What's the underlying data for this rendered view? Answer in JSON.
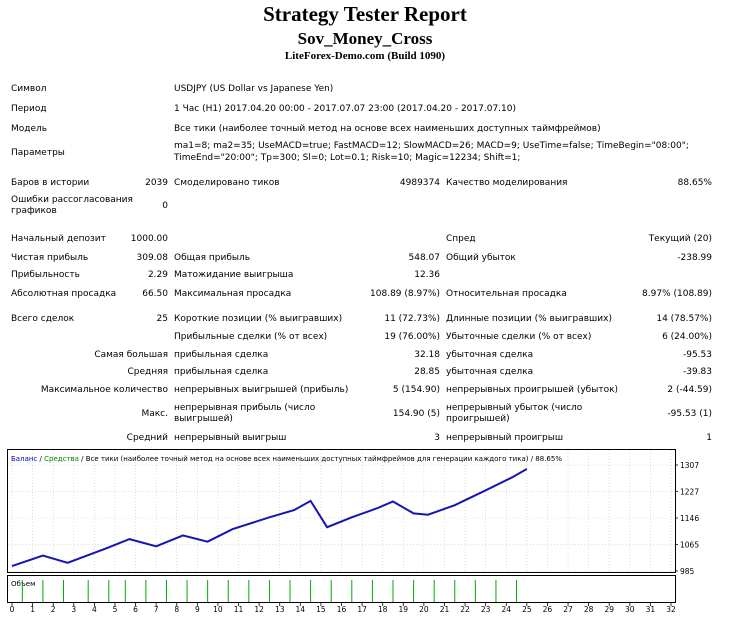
{
  "header": {
    "title": "Strategy Tester Report",
    "expert": "Sov_Money_Cross",
    "server": "LiteForex-Demo.com (Build 1090)"
  },
  "info": {
    "symbol_label": "Символ",
    "symbol_value": "USDJPY (US Dollar vs Japanese Yen)",
    "period_label": "Период",
    "period_value": "1 Час (H1) 2017.04.20 00:00 - 2017.07.07 23:00 (2017.04.20 - 2017.07.10)",
    "model_label": "Модель",
    "model_value": "Все тики (наиболее точный метод на основе всех наименьших доступных таймфреймов)",
    "params_label": "Параметры",
    "params_line1": "ma1=8; ma2=35; UseMACD=true; FastMACD=12; SlowMACD=26; MACD=9; UseTime=false; TimeBegin=\"08:00\";",
    "params_line2": "TimeEnd=\"20:00\"; Tp=300; Sl=0; Lot=0.1; Risk=10; Magic=12234; Shift=1;"
  },
  "stats": {
    "bars_label": "Баров в истории",
    "bars_value": "2039",
    "ticks_label": "Смоделировано тиков",
    "ticks_value": "4989374",
    "quality_label": "Качество моделирования",
    "quality_value": "88.65%",
    "errors_label": "Ошибки рассогласования графиков",
    "errors_value": "0",
    "deposit_label": "Начальный депозит",
    "deposit_value": "1000.00",
    "spread_label": "Спред",
    "spread_value": "Текущий (20)",
    "net_label": "Чистая прибыль",
    "net_value": "309.08",
    "gross_profit_label": "Общая прибыль",
    "gross_profit_value": "548.07",
    "gross_loss_label": "Общий убыток",
    "gross_loss_value": "-238.99",
    "pf_label": "Прибыльность",
    "pf_value": "2.29",
    "expected_label": "Матожидание выигрыша",
    "expected_value": "12.36",
    "abs_dd_label": "Абсолютная просадка",
    "abs_dd_value": "66.50",
    "max_dd_label": "Максимальная просадка",
    "max_dd_value": "108.89 (8.97%)",
    "rel_dd_label": "Относительная просадка",
    "rel_dd_value": "8.97% (108.89)",
    "total_label": "Всего сделок",
    "total_value": "25",
    "short_label": "Короткие позиции (% выигравших)",
    "short_value": "11 (72.73%)",
    "long_label": "Длинные позиции (% выигравших)",
    "long_value": "14 (78.57%)",
    "profit_trades_label": "Прибыльные сделки (% от всех)",
    "profit_trades_value": "19 (76.00%)",
    "loss_trades_label": "Убыточные сделки (% от всех)",
    "loss_trades_value": "6 (24.00%)",
    "largest_label": "Самая большая",
    "largest_profit_label": "прибыльная сделка",
    "largest_profit_value": "32.18",
    "largest_loss_label": "убыточная сделка",
    "largest_loss_value": "-95.53",
    "average_label": "Средняя",
    "average_profit_label": "прибыльная сделка",
    "average_profit_value": "28.85",
    "average_loss_label": "убыточная сделка",
    "average_loss_value": "-39.83",
    "maxnum_label": "Максимальное количество",
    "cons_wins_label": "непрерывных выигрышей (прибыль)",
    "cons_wins_value": "5 (154.90)",
    "cons_losses_label": "непрерывных проигрышей (убыток)",
    "cons_losses_value": "2 (-44.59)",
    "max_label": "Макс.",
    "cons_profit_label": "непрерывная прибыль (число выигрышей)",
    "cons_profit_value": "154.90 (5)",
    "cons_loss_label": "непрерывный убыток (число проигрышей)",
    "cons_loss_value": "-95.53 (1)",
    "avg_label": "Средний",
    "avg_wins_label": "непрерывный выигрыш",
    "avg_wins_value": "3",
    "avg_losses_label": "непрерывный проигрыш",
    "avg_losses_value": "1"
  },
  "chart_data": {
    "type": "line",
    "legend_balance": "Баланс",
    "legend_sep": " / ",
    "legend_equity": "Средства",
    "legend_rest": " / Все тики (наиболее точный метод на основе всех наименьших доступных таймфреймов для генерации каждого тика) / 88.65%",
    "volume_label": "Объем",
    "yticks": [
      1307,
      1227,
      1146,
      1065,
      985
    ],
    "ylim": [
      985,
      1307
    ],
    "xticks": [
      0,
      1,
      2,
      3,
      4,
      5,
      6,
      7,
      8,
      9,
      10,
      11,
      12,
      13,
      14,
      15,
      16,
      17,
      18,
      19,
      20,
      21,
      22,
      23,
      24,
      25,
      26,
      27,
      28,
      29,
      30,
      31,
      32
    ],
    "xlim": [
      0,
      32
    ],
    "series": [
      {
        "x": [
          0,
          1.5,
          2.7,
          4.5,
          5.7,
          7,
          8.3,
          9.5,
          10.7,
          12.5,
          13.7,
          14.5,
          15.3,
          16.5,
          17.7,
          18.5,
          19.5,
          20.2,
          21.5,
          23,
          24.3,
          25
        ],
        "values": [
          1000,
          1032,
          1010,
          1052,
          1082,
          1060,
          1093,
          1074,
          1112,
          1148,
          1170,
          1198,
          1118,
          1148,
          1175,
          1196,
          1160,
          1156,
          1185,
          1230,
          1270,
          1295
        ]
      }
    ],
    "volume_x": [
      0.5,
      1.5,
      2.5,
      3.7,
      4.7,
      5.5,
      6.5,
      7.5,
      8.5,
      9.5,
      10.5,
      11.5,
      12.5,
      13.5,
      14.5,
      15.5,
      16.5,
      17.5,
      18.5,
      19.5,
      20.5,
      21.5,
      22.5,
      23.5,
      24.5
    ]
  }
}
